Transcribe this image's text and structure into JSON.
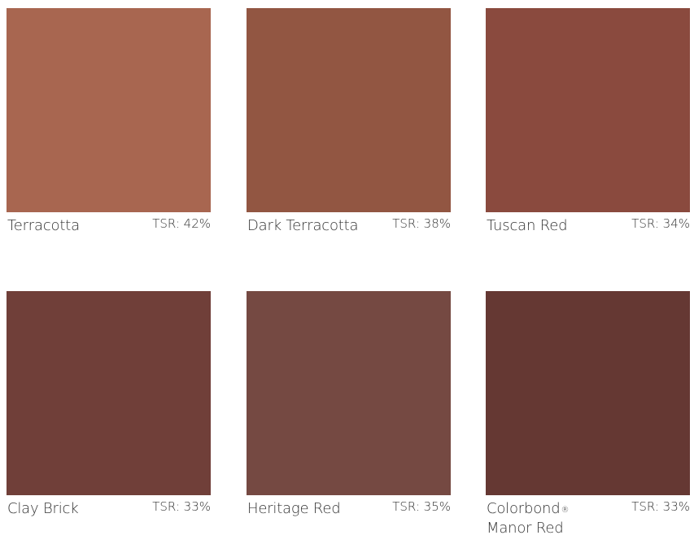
{
  "swatches": [
    {
      "name": "Terracotta",
      "tsr": "TSR: 42%",
      "color": "#a86650"
    },
    {
      "name": "Dark Terracotta",
      "tsr": "TSR: 38%",
      "color": "#925642"
    },
    {
      "name": "Tuscan Red",
      "tsr": "TSR: 34%",
      "color": "#8a4a3e"
    },
    {
      "name": "Clay Brick",
      "tsr": "TSR: 33%",
      "color": "#703f39"
    },
    {
      "name": "Heritage Red",
      "tsr": "TSR: 35%",
      "color": "#754942"
    },
    {
      "name_line1": "Colorbond",
      "name_mark": "®",
      "name_line2": "Manor Red",
      "tsr": "TSR: 33%",
      "color": "#653833"
    }
  ]
}
